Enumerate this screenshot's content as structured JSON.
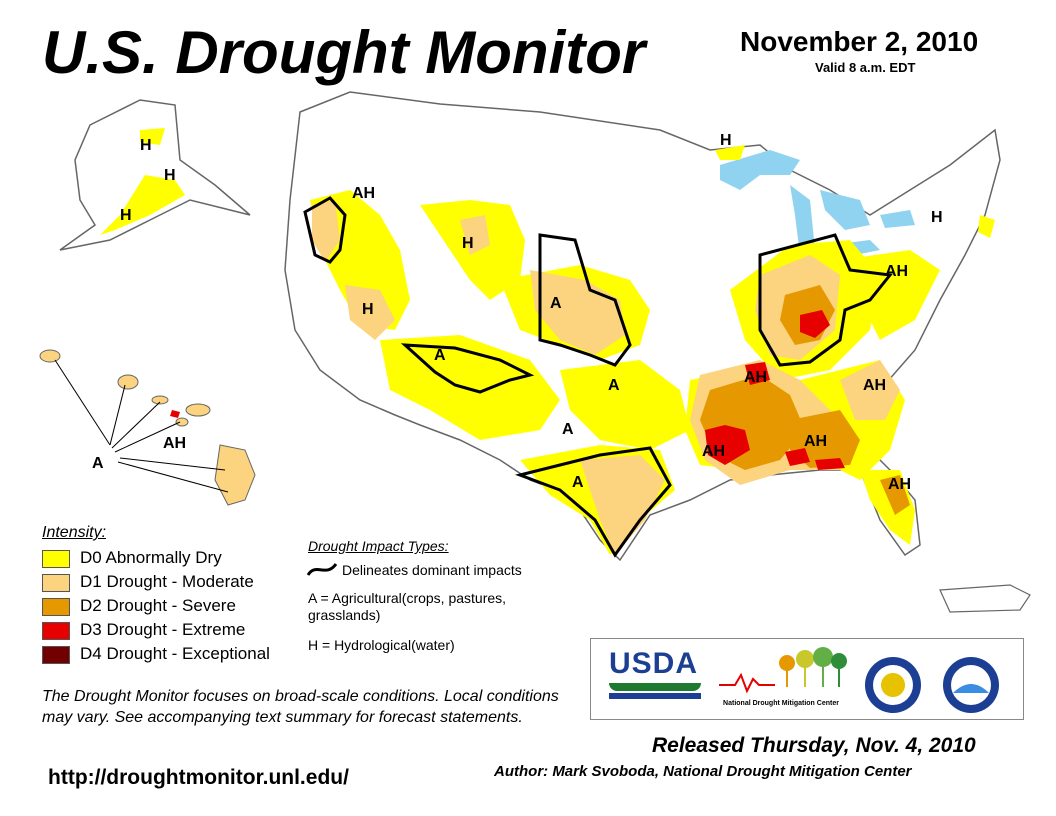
{
  "header": {
    "title": "U.S. Drought Monitor",
    "date": "November 2, 2010",
    "valid": "Valid 8 a.m. EDT"
  },
  "legend": {
    "title": "Intensity:",
    "items": [
      {
        "label": "D0 Abnormally Dry",
        "color": "#ffff00"
      },
      {
        "label": "D1 Drought - Moderate",
        "color": "#fcd37f"
      },
      {
        "label": "D2 Drought - Severe",
        "color": "#e69800"
      },
      {
        "label": "D3 Drought - Extreme",
        "color": "#e60000"
      },
      {
        "label": "D4 Drought - Exceptional",
        "color": "#730000"
      }
    ]
  },
  "impacts": {
    "title": "Drought Impact Types:",
    "line_label": "Delineates dominant impacts",
    "a_label": "A = Agricultural(crops, pastures, grasslands)",
    "h_label": "H = Hydrological(water)"
  },
  "map_labels": {
    "alaska": [
      "H",
      "H",
      "H"
    ],
    "hawaii": [
      "AH",
      "A"
    ],
    "conus": [
      "AH",
      "H",
      "H",
      "A",
      "A",
      "A",
      "A",
      "A",
      "H",
      "AH",
      "AH",
      "AH",
      "AH",
      "AH",
      "AH",
      "H"
    ]
  },
  "disclaimer": "The Drought Monitor focuses on broad-scale conditions. Local conditions may vary. See accompanying text summary for forecast statements.",
  "url": "http://droughtmonitor.unl.edu/",
  "logos": {
    "usda": "USDA",
    "ndmc": "National Drought Mitigation Center"
  },
  "footer": {
    "released": "Released Thursday, Nov. 4, 2010",
    "author": "Author: Mark Svoboda, National Drought Mitigation Center"
  },
  "colors": {
    "d0": "#ffff00",
    "d1": "#fcd37f",
    "d2": "#e69800",
    "d3": "#e60000",
    "d4": "#730000",
    "water": "#8fd3f0",
    "outline": "#000000"
  }
}
